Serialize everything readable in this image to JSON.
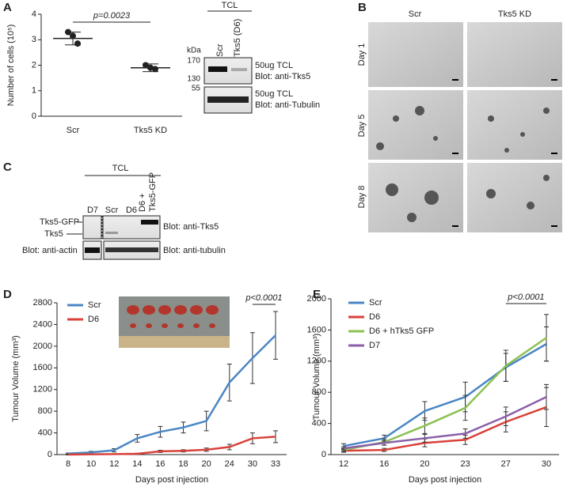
{
  "chart_data": [
    {
      "type": "dotplot",
      "ylabel": "Number of cells (10⁵)",
      "categories": [
        "Scr",
        "Tks5 KD"
      ],
      "points": [
        [
          3.3,
          3.15,
          2.85
        ],
        [
          2.0,
          1.9,
          1.85
        ]
      ],
      "means": [
        3.05,
        1.9
      ],
      "errors": [
        0.25,
        0.15
      ],
      "ylim": [
        0,
        4
      ],
      "yticks": [
        0,
        1,
        2,
        3,
        4
      ],
      "annotation": "p=0.0023",
      "color": "#222222"
    },
    {
      "type": "line",
      "ylabel": "Tumour Volume (mm³)",
      "xlabel": "Days post injection",
      "categories": [
        "8",
        "10",
        "12",
        "14",
        "16",
        "18",
        "20",
        "24",
        "30",
        "33"
      ],
      "series": [
        {
          "name": "Scr",
          "color": "#4a86c5",
          "values": [
            20,
            40,
            80,
            300,
            420,
            500,
            620,
            1330,
            1780,
            2200
          ],
          "errors": [
            10,
            20,
            30,
            70,
            100,
            100,
            180,
            340,
            470,
            440
          ]
        },
        {
          "name": "D6",
          "color": "#d9413a",
          "values": [
            0,
            5,
            10,
            15,
            60,
            70,
            90,
            140,
            300,
            330
          ],
          "errors": [
            5,
            5,
            5,
            10,
            20,
            20,
            30,
            50,
            100,
            110
          ]
        }
      ],
      "ylim": [
        0,
        2800
      ],
      "yticks": [
        0,
        400,
        800,
        1200,
        1600,
        2000,
        2400,
        2800
      ],
      "annotation": "p<0.0001"
    },
    {
      "type": "line",
      "ylabel": "Tumour Volume (mm³)",
      "xlabel": "Days post injection",
      "categories": [
        "12",
        "16",
        "20",
        "23",
        "27",
        "30"
      ],
      "series": [
        {
          "name": "Scr",
          "color": "#4a86c5",
          "values": [
            110,
            210,
            560,
            740,
            1120,
            1420
          ],
          "errors": [
            30,
            40,
            120,
            190,
            180,
            220
          ]
        },
        {
          "name": "D6",
          "color": "#d9413a",
          "values": [
            50,
            60,
            150,
            190,
            420,
            610
          ],
          "errors": [
            20,
            20,
            50,
            60,
            130,
            250
          ]
        },
        {
          "name": "D6 + hTks5 GFP",
          "color": "#8cc152",
          "values": [
            60,
            160,
            370,
            600,
            1140,
            1500
          ],
          "errors": [
            20,
            40,
            100,
            160,
            200,
            300
          ]
        },
        {
          "name": "D7",
          "color": "#8a5fa8",
          "values": [
            80,
            150,
            210,
            270,
            490,
            740
          ],
          "errors": [
            20,
            30,
            50,
            60,
            120,
            160
          ]
        }
      ],
      "ylim": [
        0,
        2000
      ],
      "yticks": [
        0,
        400,
        800,
        1200,
        1600,
        2000
      ],
      "annotation": "p<0.0001"
    }
  ],
  "figure": {
    "panel_labels": [
      "A",
      "B",
      "C",
      "D",
      "E"
    ],
    "blot_a": {
      "group": "TCL",
      "lanes": [
        "Scr",
        "Tks5 (D6)"
      ],
      "unit": "kDa",
      "markers": [
        170,
        130,
        55
      ],
      "captions": [
        "50ug TCL",
        "Blot: anti-Tks5",
        "50ug TCL",
        "Blot: anti-Tubulin"
      ]
    },
    "images_b": {
      "columns": [
        "Scr",
        "Tks5 KD"
      ],
      "rows": [
        "Day 1",
        "Day 5",
        "Day 8"
      ]
    },
    "blot_c": {
      "group": "TCL",
      "lanes": [
        "D7",
        "Scr",
        "D6",
        "D6 +",
        "Tks5-GFP"
      ],
      "bands": [
        "Tks5-GFP",
        "Tks5"
      ],
      "captions": [
        "Blot: anti-Tks5",
        "Blot: anti-actin",
        "Blot: anti-tubulin"
      ]
    }
  }
}
